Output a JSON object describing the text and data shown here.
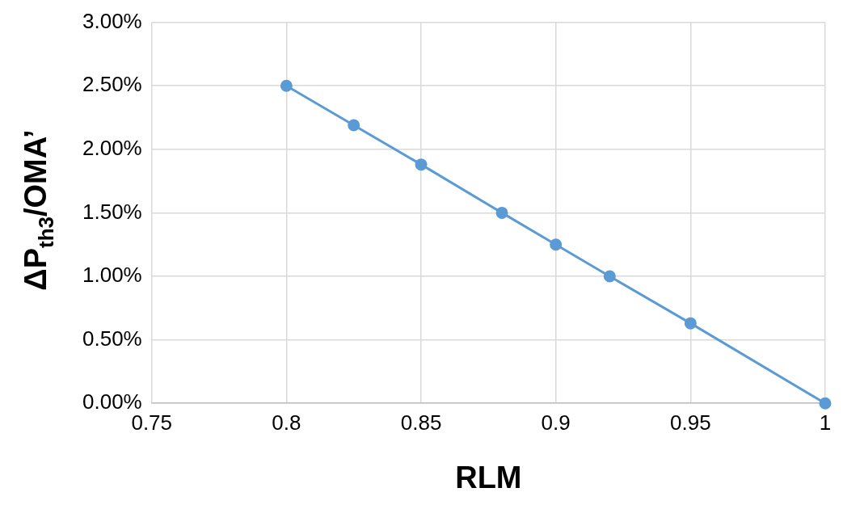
{
  "chart_data": {
    "type": "line",
    "xlabel": "RLM",
    "ylabel": "ΔP$_{th3}$/OMA’",
    "x": [
      0.8,
      0.825,
      0.85,
      0.88,
      0.9,
      0.92,
      0.95,
      1
    ],
    "series": [
      {
        "color": "#5b9bd5",
        "values": [
          2.5,
          2.19,
          1.88,
          1.5,
          1.25,
          1.0,
          0.63,
          0
        ]
      }
    ],
    "xlim": [
      0.75,
      1
    ],
    "xticks": [
      0.75,
      0.8,
      0.85,
      0.9,
      0.95,
      1
    ],
    "ylim": [
      0,
      3
    ],
    "yticks": [
      {
        "value": 0,
        "label": "0.00%"
      },
      {
        "value": 0.5,
        "label": "0.50%"
      },
      {
        "value": 1,
        "label": "1.00%"
      },
      {
        "value": 1.5,
        "label": "1.50%"
      },
      {
        "value": 2,
        "label": "2.00%"
      },
      {
        "value": 2.5,
        "label": "2.50%"
      },
      {
        "value": 3,
        "label": "3.00%"
      }
    ],
    "grid": true,
    "legend": false,
    "marker": "circle",
    "line_style": "solid"
  }
}
